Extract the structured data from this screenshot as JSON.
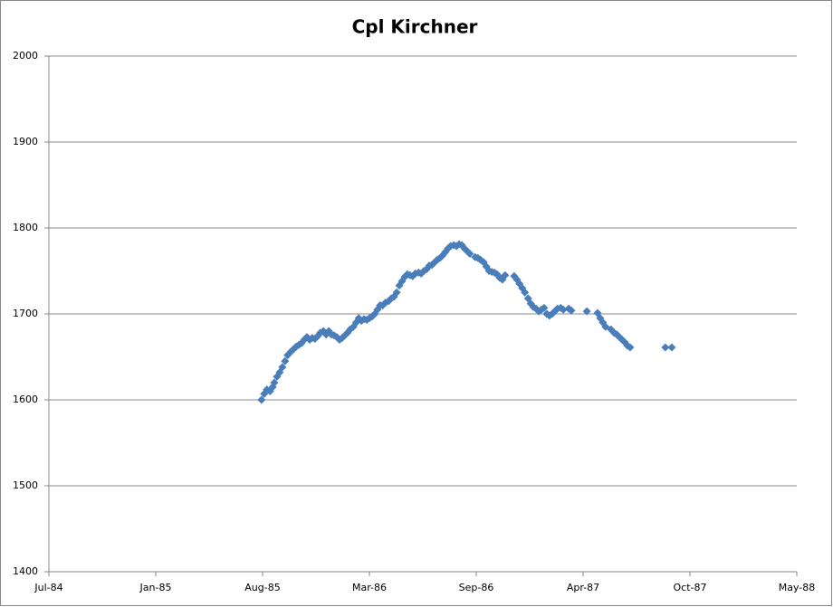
{
  "chart_data": {
    "type": "scatter",
    "title": "Cpl Kirchner",
    "series": [
      {
        "color": "#4a7ebb",
        "x": [
          31273,
          31278,
          31283,
          31289,
          31294,
          31297,
          31302,
          31307,
          31312,
          31317,
          31322,
          31328,
          31333,
          31338,
          31343,
          31348,
          31353,
          31358,
          31363,
          31368,
          31373,
          31378,
          31383,
          31389,
          31394,
          31399,
          31404,
          31409,
          31414,
          31419,
          31424,
          31429,
          31434,
          31439,
          31445,
          31450,
          31455,
          31460,
          31465,
          31470,
          31475,
          31480,
          31485,
          31490,
          31495,
          31500,
          31505,
          31511,
          31516,
          31521,
          31526,
          31531,
          31536,
          31541,
          31546,
          31551,
          31556,
          31561,
          31567,
          31572,
          31577,
          31582,
          31587,
          31592,
          31597,
          31602,
          31607,
          31612,
          31617,
          31622,
          31627,
          31633,
          31638,
          31643,
          31648,
          31653,
          31658,
          31663,
          31673,
          31678,
          31683,
          31689,
          31694,
          31699,
          31704,
          31709,
          31714,
          31719,
          31724,
          31729,
          31746,
          31751,
          31756,
          31761,
          31766,
          31772,
          31777,
          31782,
          31787,
          31792,
          31797,
          31802,
          31807,
          31812,
          31817,
          31822,
          31827,
          31833,
          31838,
          31848,
          31853,
          31882,
          31902,
          31907,
          31912,
          31917,
          31927,
          31933,
          31938,
          31943,
          31948,
          31953,
          31958,
          31963,
          32029,
          32041
        ],
        "values": [
          1600,
          1607,
          1612,
          1610,
          1615,
          1620,
          1627,
          1632,
          1638,
          1645,
          1652,
          1656,
          1659,
          1662,
          1664,
          1666,
          1670,
          1673,
          1670,
          1672,
          1671,
          1674,
          1678,
          1680,
          1676,
          1680,
          1676,
          1675,
          1673,
          1670,
          1672,
          1675,
          1678,
          1682,
          1685,
          1690,
          1695,
          1692,
          1694,
          1693,
          1695,
          1697,
          1700,
          1705,
          1710,
          1710,
          1713,
          1715,
          1718,
          1720,
          1725,
          1733,
          1738,
          1743,
          1746,
          1745,
          1744,
          1747,
          1748,
          1747,
          1750,
          1752,
          1756,
          1757,
          1760,
          1763,
          1765,
          1768,
          1772,
          1776,
          1779,
          1780,
          1779,
          1781,
          1780,
          1776,
          1773,
          1770,
          1766,
          1765,
          1763,
          1760,
          1755,
          1750,
          1749,
          1748,
          1746,
          1742,
          1740,
          1745,
          1744,
          1740,
          1735,
          1730,
          1725,
          1718,
          1712,
          1708,
          1706,
          1703,
          1705,
          1707,
          1700,
          1698,
          1700,
          1703,
          1706,
          1707,
          1705,
          1706,
          1704,
          1703,
          1701,
          1695,
          1690,
          1685,
          1682,
          1678,
          1676,
          1673,
          1670,
          1667,
          1663,
          1661,
          1661,
          1661
        ]
      }
    ],
    "xlim": [
      30875,
      32275
    ],
    "xticks": [
      {
        "value": 30875,
        "label": "Jul-84"
      },
      {
        "value": 31075,
        "label": "Jan-85"
      },
      {
        "value": 31275,
        "label": "Aug-85"
      },
      {
        "value": 31475,
        "label": "Mar-86"
      },
      {
        "value": 31675,
        "label": "Sep-86"
      },
      {
        "value": 31875,
        "label": "Apr-87"
      },
      {
        "value": 32075,
        "label": "Oct-87"
      },
      {
        "value": 32275,
        "label": "May-88"
      }
    ],
    "ylim": [
      1400,
      2000
    ],
    "yticks": [
      1400,
      1500,
      1600,
      1700,
      1800,
      1900,
      2000
    ],
    "grid": true
  }
}
